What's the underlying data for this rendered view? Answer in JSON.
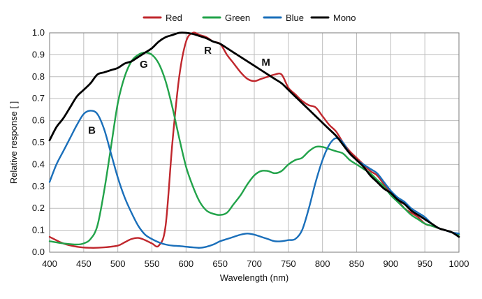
{
  "chart_data": {
    "type": "line",
    "title": "",
    "xlabel": "Wavelength (nm)",
    "ylabel": "Relative response [ ]",
    "xlim": [
      400,
      1000
    ],
    "ylim": [
      0.0,
      1.0
    ],
    "x_ticks": [
      "400",
      "450",
      "500",
      "550",
      "600",
      "650",
      "700",
      "750",
      "800",
      "850",
      "900",
      "950",
      "1000"
    ],
    "y_ticks": [
      "0.0",
      "0.1",
      "0.2",
      "0.3",
      "0.4",
      "0.5",
      "0.6",
      "0.7",
      "0.8",
      "0.9",
      "1.0"
    ],
    "grid": true,
    "legend_position": "top",
    "series": [
      {
        "name": "Red",
        "color": "#c0272d",
        "points": [
          [
            400,
            0.07
          ],
          [
            420,
            0.04
          ],
          [
            440,
            0.025
          ],
          [
            460,
            0.02
          ],
          [
            480,
            0.022
          ],
          [
            500,
            0.03
          ],
          [
            510,
            0.045
          ],
          [
            520,
            0.06
          ],
          [
            530,
            0.065
          ],
          [
            540,
            0.055
          ],
          [
            550,
            0.04
          ],
          [
            560,
            0.03
          ],
          [
            570,
            0.12
          ],
          [
            580,
            0.5
          ],
          [
            590,
            0.8
          ],
          [
            600,
            0.96
          ],
          [
            610,
            1.0
          ],
          [
            620,
            0.99
          ],
          [
            630,
            0.98
          ],
          [
            640,
            0.96
          ],
          [
            650,
            0.95
          ],
          [
            660,
            0.9
          ],
          [
            670,
            0.86
          ],
          [
            680,
            0.82
          ],
          [
            690,
            0.79
          ],
          [
            700,
            0.78
          ],
          [
            710,
            0.79
          ],
          [
            720,
            0.8
          ],
          [
            730,
            0.81
          ],
          [
            740,
            0.81
          ],
          [
            750,
            0.75
          ],
          [
            760,
            0.72
          ],
          [
            770,
            0.69
          ],
          [
            780,
            0.67
          ],
          [
            790,
            0.66
          ],
          [
            800,
            0.62
          ],
          [
            810,
            0.58
          ],
          [
            820,
            0.55
          ],
          [
            830,
            0.5
          ],
          [
            840,
            0.46
          ],
          [
            850,
            0.43
          ],
          [
            860,
            0.4
          ],
          [
            870,
            0.37
          ],
          [
            880,
            0.35
          ],
          [
            890,
            0.31
          ],
          [
            900,
            0.27
          ],
          [
            910,
            0.24
          ],
          [
            920,
            0.2
          ],
          [
            930,
            0.18
          ],
          [
            940,
            0.16
          ],
          [
            950,
            0.13
          ],
          [
            960,
            0.12
          ],
          [
            970,
            0.11
          ],
          [
            980,
            0.1
          ],
          [
            990,
            0.09
          ],
          [
            1000,
            0.08
          ]
        ]
      },
      {
        "name": "Green",
        "color": "#22a34a",
        "points": [
          [
            400,
            0.05
          ],
          [
            420,
            0.04
          ],
          [
            440,
            0.035
          ],
          [
            450,
            0.04
          ],
          [
            460,
            0.06
          ],
          [
            470,
            0.12
          ],
          [
            480,
            0.28
          ],
          [
            490,
            0.48
          ],
          [
            500,
            0.68
          ],
          [
            510,
            0.8
          ],
          [
            520,
            0.87
          ],
          [
            530,
            0.9
          ],
          [
            540,
            0.91
          ],
          [
            550,
            0.9
          ],
          [
            560,
            0.86
          ],
          [
            570,
            0.78
          ],
          [
            580,
            0.66
          ],
          [
            590,
            0.52
          ],
          [
            600,
            0.39
          ],
          [
            610,
            0.3
          ],
          [
            620,
            0.23
          ],
          [
            630,
            0.19
          ],
          [
            640,
            0.175
          ],
          [
            650,
            0.17
          ],
          [
            660,
            0.18
          ],
          [
            670,
            0.22
          ],
          [
            680,
            0.26
          ],
          [
            690,
            0.31
          ],
          [
            700,
            0.35
          ],
          [
            710,
            0.37
          ],
          [
            720,
            0.37
          ],
          [
            730,
            0.36
          ],
          [
            740,
            0.37
          ],
          [
            750,
            0.4
          ],
          [
            760,
            0.42
          ],
          [
            770,
            0.43
          ],
          [
            780,
            0.46
          ],
          [
            790,
            0.48
          ],
          [
            800,
            0.48
          ],
          [
            810,
            0.47
          ],
          [
            820,
            0.46
          ],
          [
            830,
            0.45
          ],
          [
            840,
            0.42
          ],
          [
            850,
            0.4
          ],
          [
            860,
            0.38
          ],
          [
            870,
            0.36
          ],
          [
            880,
            0.33
          ],
          [
            890,
            0.3
          ],
          [
            900,
            0.26
          ],
          [
            910,
            0.23
          ],
          [
            920,
            0.2
          ],
          [
            930,
            0.17
          ],
          [
            940,
            0.15
          ],
          [
            950,
            0.13
          ],
          [
            960,
            0.12
          ],
          [
            970,
            0.11
          ],
          [
            980,
            0.1
          ],
          [
            990,
            0.09
          ],
          [
            1000,
            0.08
          ]
        ]
      },
      {
        "name": "Blue",
        "color": "#1a6fba",
        "points": [
          [
            400,
            0.32
          ],
          [
            410,
            0.4
          ],
          [
            420,
            0.46
          ],
          [
            430,
            0.52
          ],
          [
            440,
            0.58
          ],
          [
            450,
            0.63
          ],
          [
            460,
            0.645
          ],
          [
            470,
            0.63
          ],
          [
            480,
            0.56
          ],
          [
            490,
            0.45
          ],
          [
            500,
            0.34
          ],
          [
            510,
            0.25
          ],
          [
            520,
            0.18
          ],
          [
            530,
            0.12
          ],
          [
            540,
            0.08
          ],
          [
            550,
            0.06
          ],
          [
            560,
            0.045
          ],
          [
            570,
            0.035
          ],
          [
            580,
            0.03
          ],
          [
            590,
            0.028
          ],
          [
            600,
            0.025
          ],
          [
            610,
            0.022
          ],
          [
            620,
            0.02
          ],
          [
            630,
            0.025
          ],
          [
            640,
            0.035
          ],
          [
            650,
            0.05
          ],
          [
            660,
            0.06
          ],
          [
            670,
            0.07
          ],
          [
            680,
            0.08
          ],
          [
            690,
            0.085
          ],
          [
            700,
            0.08
          ],
          [
            710,
            0.07
          ],
          [
            720,
            0.06
          ],
          [
            730,
            0.05
          ],
          [
            740,
            0.05
          ],
          [
            750,
            0.055
          ],
          [
            760,
            0.06
          ],
          [
            770,
            0.1
          ],
          [
            780,
            0.2
          ],
          [
            790,
            0.32
          ],
          [
            800,
            0.42
          ],
          [
            810,
            0.49
          ],
          [
            820,
            0.52
          ],
          [
            830,
            0.5
          ],
          [
            840,
            0.45
          ],
          [
            850,
            0.42
          ],
          [
            860,
            0.4
          ],
          [
            870,
            0.38
          ],
          [
            880,
            0.36
          ],
          [
            890,
            0.32
          ],
          [
            900,
            0.28
          ],
          [
            910,
            0.25
          ],
          [
            920,
            0.23
          ],
          [
            930,
            0.2
          ],
          [
            940,
            0.18
          ],
          [
            950,
            0.16
          ],
          [
            960,
            0.13
          ],
          [
            970,
            0.11
          ],
          [
            980,
            0.1
          ],
          [
            990,
            0.09
          ],
          [
            1000,
            0.085
          ]
        ]
      },
      {
        "name": "Mono",
        "color": "#000000",
        "points": [
          [
            400,
            0.51
          ],
          [
            410,
            0.57
          ],
          [
            420,
            0.61
          ],
          [
            430,
            0.66
          ],
          [
            440,
            0.71
          ],
          [
            450,
            0.74
          ],
          [
            460,
            0.77
          ],
          [
            470,
            0.81
          ],
          [
            480,
            0.82
          ],
          [
            490,
            0.83
          ],
          [
            500,
            0.84
          ],
          [
            510,
            0.86
          ],
          [
            520,
            0.87
          ],
          [
            530,
            0.89
          ],
          [
            540,
            0.91
          ],
          [
            550,
            0.93
          ],
          [
            560,
            0.96
          ],
          [
            570,
            0.98
          ],
          [
            580,
            0.99
          ],
          [
            590,
            1.0
          ],
          [
            600,
            1.0
          ],
          [
            610,
            0.995
          ],
          [
            620,
            0.985
          ],
          [
            630,
            0.975
          ],
          [
            640,
            0.96
          ],
          [
            650,
            0.95
          ],
          [
            660,
            0.93
          ],
          [
            670,
            0.91
          ],
          [
            680,
            0.89
          ],
          [
            690,
            0.87
          ],
          [
            700,
            0.85
          ],
          [
            710,
            0.83
          ],
          [
            720,
            0.81
          ],
          [
            730,
            0.79
          ],
          [
            740,
            0.77
          ],
          [
            750,
            0.74
          ],
          [
            760,
            0.71
          ],
          [
            770,
            0.68
          ],
          [
            780,
            0.65
          ],
          [
            790,
            0.62
          ],
          [
            800,
            0.59
          ],
          [
            810,
            0.56
          ],
          [
            820,
            0.53
          ],
          [
            830,
            0.49
          ],
          [
            840,
            0.45
          ],
          [
            850,
            0.42
          ],
          [
            860,
            0.39
          ],
          [
            870,
            0.35
          ],
          [
            880,
            0.32
          ],
          [
            890,
            0.29
          ],
          [
            900,
            0.27
          ],
          [
            910,
            0.24
          ],
          [
            920,
            0.22
          ],
          [
            930,
            0.19
          ],
          [
            940,
            0.17
          ],
          [
            950,
            0.15
          ],
          [
            960,
            0.13
          ],
          [
            970,
            0.11
          ],
          [
            980,
            0.1
          ],
          [
            990,
            0.09
          ],
          [
            1000,
            0.07
          ]
        ]
      }
    ],
    "annotations": [
      {
        "text": "G",
        "x": 538,
        "y": 0.84
      },
      {
        "text": "R",
        "x": 632,
        "y": 0.905
      },
      {
        "text": "M",
        "x": 717,
        "y": 0.85
      },
      {
        "text": "B",
        "x": 462,
        "y": 0.54
      }
    ]
  }
}
